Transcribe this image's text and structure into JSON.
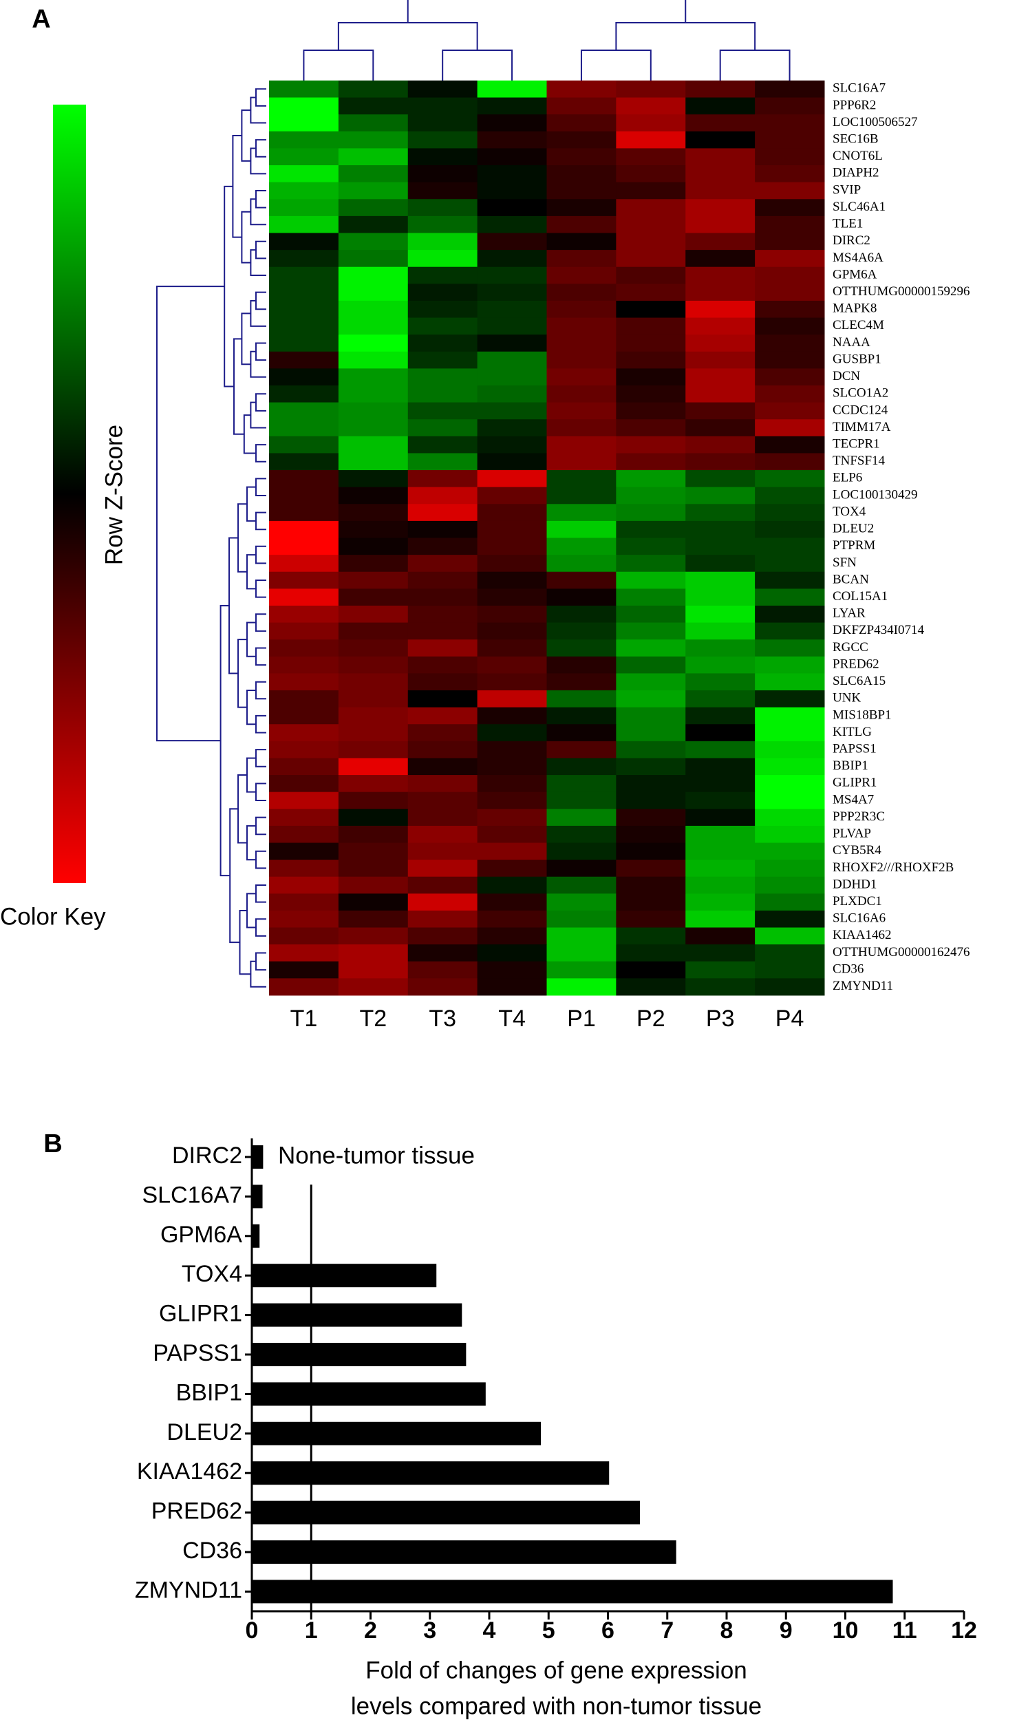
{
  "chart_data": [
    {
      "type": "heatmap",
      "panel": "A",
      "colorbar_label": "Row Z-Score",
      "colorbar_title": "Color Key",
      "colors": [
        "#ff0000",
        "#000000",
        "#00ff00"
      ],
      "zlim": [
        -2,
        2
      ],
      "columns": [
        "T1",
        "T2",
        "T3",
        "T4",
        "P1",
        "P2",
        "P3",
        "P4"
      ],
      "rows": [
        "SLC16A7",
        "PPP6R2",
        "LOC100506527",
        "SEC16B",
        "CNOT6L",
        "DIAPH2",
        "SVIP",
        "SLC46A1",
        "TLE1",
        "DIRC2",
        "MS4A6A",
        "GPM6A",
        "OTTHUMG00000159296",
        "MAPK8",
        "CLEC4M",
        "NAAA",
        "GUSBP1",
        "DCN",
        "SLCO1A2",
        "CCDC124",
        "TIMM17A",
        "TECPR1",
        "TNFSF14",
        "ELP6",
        "LOC100130429",
        "TOX4",
        "DLEU2",
        "PTPRM",
        "SFN",
        "BCAN",
        "COL15A1",
        "LYAR",
        "DKFZP434I0714",
        "RGCC",
        "PRED62",
        "SLC6A15",
        "UNK",
        "MIS18BP1",
        "KITLG",
        "PAPSS1",
        "BBIP1",
        "GLIPR1",
        "MS4A7",
        "PPP2R3C",
        "PLVAP",
        "CYB5R4",
        "RHOXF2///RHOXF2B",
        "DDHD1",
        "PLXDC1",
        "SLC16A6",
        "KIAA1462",
        "OTTHUMG00000162476",
        "CD36",
        "ZMYND11"
      ],
      "values": [
        [
          1.0,
          0.5,
          0.1,
          1.9,
          -1.0,
          -0.9,
          -0.7,
          -0.3
        ],
        [
          2.0,
          0.3,
          0.3,
          0.2,
          -0.8,
          -1.3,
          0.1,
          -0.5
        ],
        [
          2.0,
          0.8,
          0.3,
          -0.1,
          -0.6,
          -1.2,
          -0.6,
          -0.6
        ],
        [
          1.1,
          1.1,
          0.5,
          -0.3,
          -0.4,
          -1.7,
          0.0,
          -0.6
        ],
        [
          1.2,
          1.5,
          0.1,
          -0.1,
          -0.5,
          -0.7,
          -1.0,
          -0.6
        ],
        [
          1.8,
          1.0,
          -0.1,
          0.1,
          -0.4,
          -0.6,
          -1.0,
          -0.7
        ],
        [
          1.4,
          1.2,
          -0.2,
          0.1,
          -0.4,
          -0.4,
          -1.0,
          -1.0
        ],
        [
          1.3,
          0.8,
          0.6,
          0.0,
          -0.2,
          -1.0,
          -1.3,
          -0.3
        ],
        [
          1.6,
          0.3,
          0.8,
          0.3,
          -0.6,
          -1.0,
          -1.3,
          -0.5
        ],
        [
          0.1,
          1.0,
          1.6,
          -0.3,
          -0.1,
          -1.0,
          -0.8,
          -0.5
        ],
        [
          0.3,
          0.9,
          1.8,
          0.2,
          -0.7,
          -1.0,
          -0.2,
          -1.1
        ],
        [
          0.5,
          1.9,
          0.4,
          0.4,
          -0.8,
          -0.6,
          -1.0,
          -0.9
        ],
        [
          0.5,
          1.9,
          0.2,
          0.3,
          -0.6,
          -0.7,
          -1.0,
          -0.9
        ],
        [
          0.5,
          1.7,
          0.3,
          0.4,
          -0.7,
          0.0,
          -1.7,
          -0.5
        ],
        [
          0.5,
          1.7,
          0.5,
          0.4,
          -0.8,
          -0.6,
          -1.4,
          -0.3
        ],
        [
          0.5,
          2.0,
          0.3,
          0.1,
          -0.8,
          -0.6,
          -1.3,
          -0.4
        ],
        [
          -0.3,
          1.8,
          0.4,
          0.9,
          -0.8,
          -0.5,
          -1.1,
          -0.4
        ],
        [
          0.1,
          1.2,
          0.9,
          0.9,
          -0.9,
          -0.2,
          -1.3,
          -0.6
        ],
        [
          0.3,
          1.2,
          0.9,
          0.8,
          -0.8,
          -0.3,
          -1.3,
          -0.8
        ],
        [
          1.0,
          1.1,
          0.6,
          0.6,
          -0.9,
          -0.4,
          -0.6,
          -0.9
        ],
        [
          1.0,
          1.1,
          0.8,
          0.3,
          -0.8,
          -0.6,
          -0.4,
          -1.3
        ],
        [
          0.7,
          1.5,
          0.4,
          0.2,
          -1.1,
          -1.0,
          -0.9,
          -0.2
        ],
        [
          0.3,
          1.5,
          1.0,
          0.1,
          -1.1,
          -0.8,
          -0.7,
          -0.6
        ],
        [
          -0.5,
          0.2,
          -0.9,
          -1.7,
          0.5,
          1.2,
          0.6,
          0.8
        ],
        [
          -0.5,
          -0.1,
          -1.5,
          -0.8,
          0.5,
          1.1,
          1.0,
          0.6
        ],
        [
          -0.5,
          -0.3,
          -1.7,
          -0.6,
          1.1,
          1.0,
          0.7,
          0.5
        ],
        [
          -2.0,
          -0.2,
          -0.1,
          -0.6,
          1.6,
          0.5,
          0.5,
          0.4
        ],
        [
          -2.0,
          -0.1,
          -0.3,
          -0.6,
          1.2,
          0.6,
          0.5,
          0.5
        ],
        [
          -1.6,
          -0.4,
          -0.8,
          -0.5,
          1.1,
          0.8,
          0.4,
          0.5
        ],
        [
          -1.0,
          -0.8,
          -0.6,
          -0.2,
          -0.5,
          1.4,
          1.6,
          0.3
        ],
        [
          -1.8,
          -0.5,
          -0.5,
          -0.3,
          -0.1,
          1.0,
          1.6,
          0.8
        ],
        [
          -1.2,
          -1.0,
          -0.6,
          -0.5,
          0.3,
          0.8,
          1.8,
          0.2
        ],
        [
          -1.0,
          -0.6,
          -0.6,
          -0.4,
          0.4,
          1.0,
          1.6,
          0.5
        ],
        [
          -0.8,
          -0.7,
          -1.1,
          -0.5,
          0.5,
          1.3,
          1.1,
          0.9
        ],
        [
          -0.9,
          -0.8,
          -0.6,
          -0.7,
          -0.3,
          0.8,
          1.2,
          1.3
        ],
        [
          -1.0,
          -0.9,
          -0.5,
          -0.6,
          -0.4,
          1.2,
          0.9,
          1.4
        ],
        [
          -0.6,
          -0.9,
          0.0,
          -1.5,
          0.8,
          1.3,
          0.7,
          0.3
        ],
        [
          -0.6,
          -1.0,
          -1.1,
          -0.2,
          0.2,
          1.0,
          0.3,
          1.9
        ],
        [
          -1.1,
          -1.0,
          -0.7,
          0.2,
          -0.1,
          1.0,
          0.0,
          1.9
        ],
        [
          -1.0,
          -0.9,
          -0.6,
          -0.3,
          -0.6,
          0.7,
          0.8,
          1.7
        ],
        [
          -0.8,
          -1.8,
          -0.2,
          -0.3,
          0.3,
          0.4,
          0.2,
          1.8
        ],
        [
          -0.6,
          -1.0,
          -0.9,
          -0.4,
          0.6,
          0.2,
          0.2,
          2.0
        ],
        [
          -1.4,
          -0.6,
          -0.7,
          -0.5,
          0.6,
          0.2,
          0.3,
          2.0
        ],
        [
          -1.0,
          0.1,
          -0.7,
          -0.8,
          1.0,
          -0.3,
          0.1,
          1.7
        ],
        [
          -0.8,
          -0.5,
          -1.1,
          -0.7,
          0.4,
          -0.2,
          1.3,
          1.6
        ],
        [
          -0.2,
          -0.6,
          -1.0,
          -1.0,
          0.3,
          -0.1,
          1.3,
          1.3
        ],
        [
          -0.9,
          -0.6,
          -1.3,
          -0.5,
          -0.1,
          -0.5,
          1.4,
          1.2
        ],
        [
          -1.2,
          -0.9,
          -0.7,
          0.2,
          0.7,
          -0.3,
          1.3,
          1.1
        ],
        [
          -0.9,
          -0.1,
          -1.6,
          -0.3,
          1.1,
          -0.3,
          1.4,
          0.9
        ],
        [
          -1.0,
          -0.5,
          -1.0,
          -0.5,
          1.0,
          -0.4,
          1.6,
          0.2
        ],
        [
          -0.8,
          -0.9,
          -0.6,
          -0.3,
          1.5,
          0.4,
          -0.2,
          1.5
        ],
        [
          -1.2,
          -1.3,
          -0.2,
          0.1,
          1.5,
          0.3,
          0.3,
          0.5
        ],
        [
          -0.2,
          -1.3,
          -0.7,
          -0.2,
          1.2,
          0.0,
          0.6,
          0.5
        ],
        [
          -0.9,
          -1.1,
          -0.8,
          -0.2,
          1.9,
          0.2,
          0.4,
          0.3
        ]
      ]
    },
    {
      "type": "barh",
      "panel": "B",
      "annotation": "None-tumor tissue",
      "xlabel": [
        "Fold of changes of gene expression",
        "levels compared with non-tumor tissue"
      ],
      "categories": [
        "DIRC2",
        "SLC16A7",
        "GPM6A",
        "TOX4",
        "GLIPR1",
        "PAPSS1",
        "BBIP1",
        "DLEU2",
        "KIAA1462",
        "PRED62",
        "CD36",
        "ZMYND11"
      ],
      "values": [
        0.19,
        0.18,
        0.13,
        3.11,
        3.54,
        3.61,
        3.94,
        4.87,
        6.02,
        6.54,
        7.15,
        10.8
      ],
      "color": "#000000",
      "reference_line": 1,
      "xlim": [
        0,
        12
      ],
      "xticks": [
        0,
        1,
        2,
        3,
        4,
        5,
        6,
        7,
        8,
        9,
        10,
        11,
        12
      ]
    }
  ]
}
